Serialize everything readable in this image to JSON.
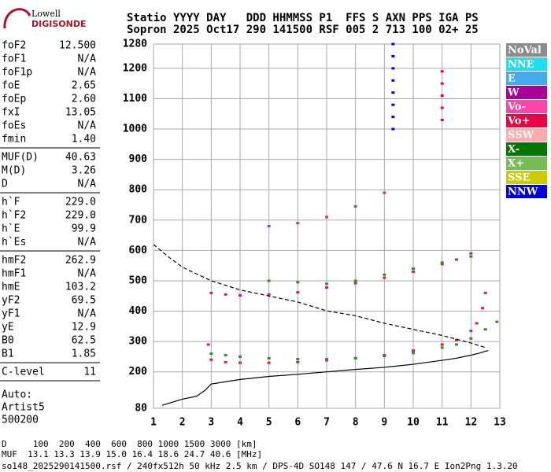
{
  "logo": {
    "brand": "Lowell",
    "product": "DIGISONDE"
  },
  "header": {
    "line1": "Statio YYYY DAY   DDD HHMMSS P1  FFS S AXN PPS IGA PS",
    "line2": "Sopron 2025 Oct17 290 141500 RSF 005 2 713 100 02+ 25"
  },
  "params": [
    [
      [
        "foF2",
        "12.500"
      ],
      [
        "foF1",
        "N/A"
      ],
      [
        "foF1p",
        "N/A"
      ],
      [
        "foE",
        "2.65"
      ],
      [
        "foEp",
        "2.60"
      ],
      [
        "fxI",
        "13.05"
      ],
      [
        "foEs",
        "N/A"
      ],
      [
        "fmin",
        "1.40"
      ]
    ],
    [
      [
        "MUF(D)",
        "40.63"
      ],
      [
        "M(D)",
        "3.26"
      ],
      [
        "D",
        "N/A"
      ]
    ],
    [
      [
        "h`F",
        "229.0"
      ],
      [
        "h`F2",
        "229.0"
      ],
      [
        "h`E",
        "99.9"
      ],
      [
        "h`Es",
        "N/A"
      ]
    ],
    [
      [
        "hmF2",
        "262.9"
      ],
      [
        "hmF1",
        "N/A"
      ],
      [
        "hmE",
        "103.2"
      ],
      [
        "yF2",
        "69.5"
      ],
      [
        "yF1",
        "N/A"
      ],
      [
        "yE",
        "12.9"
      ],
      [
        "B0",
        "62.5"
      ],
      [
        "B1",
        "1.85"
      ]
    ],
    [
      [
        "C-level",
        "11"
      ]
    ]
  ],
  "auto": [
    "Auto:",
    "Artist5",
    "500200"
  ],
  "chart_data": {
    "type": "scatter",
    "xlim": [
      1,
      13
    ],
    "xticks": [
      1,
      2,
      3,
      4,
      5,
      6,
      7,
      8,
      9,
      10,
      11,
      12,
      13
    ],
    "ylim": [
      80,
      1280
    ],
    "yticks": [
      80,
      200,
      300,
      400,
      500,
      600,
      700,
      800,
      900,
      1000,
      1100,
      1200,
      1280
    ],
    "grid": true,
    "legend": [
      {
        "name": "NoVal",
        "color": "#8c8c8c"
      },
      {
        "name": "NNE",
        "color": "#22ddee"
      },
      {
        "name": "E",
        "color": "#44aaee"
      },
      {
        "name": "W",
        "color": "#aa0099"
      },
      {
        "name": "Vo-",
        "color": "#ff44aa"
      },
      {
        "name": "Vo+",
        "color": "#ee0044"
      },
      {
        "name": "SSW",
        "color": "#ffaaaa"
      },
      {
        "name": "X-",
        "color": "#007700"
      },
      {
        "name": "X+",
        "color": "#77bb55"
      },
      {
        "name": "SSE",
        "color": "#cccc00"
      },
      {
        "name": "NNW",
        "color": "#0000dd"
      }
    ],
    "series": [
      {
        "color": "#d0206a",
        "x": [
          2.9,
          3.0,
          3.5,
          4,
          5,
          6,
          7,
          8,
          9,
          10,
          11,
          11.5,
          12,
          12.2,
          12.4,
          12.5
        ],
        "values": [
          290,
          240,
          232,
          230,
          230,
          232,
          238,
          245,
          255,
          270,
          290,
          305,
          335,
          360,
          410,
          460
        ]
      },
      {
        "color": "#3a8a2a",
        "x": [
          3.0,
          3.5,
          4,
          5,
          6,
          7,
          8,
          9,
          10,
          11,
          11.5,
          12,
          12.5,
          12.9
        ],
        "values": [
          260,
          255,
          250,
          245,
          242,
          242,
          245,
          252,
          262,
          280,
          290,
          310,
          340,
          365
        ]
      },
      {
        "color": "#d0206a",
        "x": [
          3,
          3.5,
          4,
          5,
          6,
          7,
          8,
          9,
          10,
          11,
          11.5,
          12
        ],
        "values": [
          460,
          455,
          452,
          455,
          462,
          478,
          492,
          510,
          530,
          555,
          570,
          590
        ]
      },
      {
        "color": "#3a8a2a",
        "x": [
          5,
          6,
          7,
          8,
          9,
          10,
          11,
          12
        ],
        "values": [
          500,
          495,
          490,
          500,
          520,
          540,
          560,
          580
        ]
      },
      {
        "color": "#c04070",
        "x": [
          5,
          6,
          7,
          8,
          9
        ],
        "values": [
          680,
          690,
          710,
          745,
          790
        ]
      },
      {
        "color": "#0000dd",
        "x": [
          9.3,
          9.3,
          9.3,
          9.3,
          9.3,
          9.3,
          9.3,
          9.3
        ],
        "values": [
          1000,
          1040,
          1080,
          1120,
          1160,
          1200,
          1240,
          1280
        ]
      },
      {
        "color": "#ee0044",
        "x": [
          11,
          11,
          11,
          11,
          11
        ],
        "values": [
          1030,
          1070,
          1110,
          1150,
          1190
        ]
      },
      {
        "color": "#000000",
        "line": true,
        "x": [
          1.3,
          2,
          2.5,
          2.8,
          3,
          4,
          5,
          6,
          7,
          8,
          9,
          10,
          11,
          11.5,
          12,
          12.3,
          12.5,
          12.6
        ],
        "values": [
          90,
          110,
          120,
          140,
          160,
          175,
          185,
          192,
          200,
          208,
          215,
          225,
          238,
          245,
          255,
          262,
          268,
          270
        ]
      },
      {
        "color": "#000000",
        "line": true,
        "dash": true,
        "x": [
          1,
          1.5,
          2,
          3,
          4,
          5,
          6,
          7,
          8,
          9,
          10,
          11,
          12,
          12.5
        ],
        "values": [
          620,
          580,
          545,
          500,
          470,
          450,
          430,
          401,
          385,
          360,
          340,
          320,
          295,
          280
        ]
      }
    ]
  },
  "mufs": {
    "line1": "D     100  200  400  600  800 1000 1500 3000 [km]",
    "line2": "MUF  13.1 13.3 13.9 15.0 16.4 18.6 24.7 40.6 [MHz]"
  },
  "footer": "so148_2025290141500.rsf / 240fx512h 50 kHz 2.5 km / DPS-4D SO148 147 / 47.6 N 16.7 E Ion2Png 1.3.20"
}
